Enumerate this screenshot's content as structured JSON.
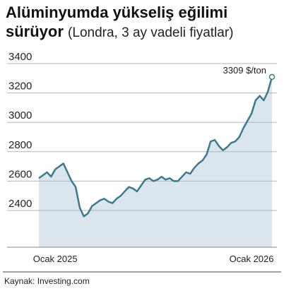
{
  "chart_data": {
    "type": "area",
    "title": "Alüminyumda yükseliş eğilimi sürüyor",
    "subtitle": "(Londra, 3 ay vadeli fiyatlar)",
    "categories": [
      null,
      null,
      null,
      null,
      "Ocak 2025",
      null,
      null,
      null,
      null,
      null,
      null,
      null,
      null,
      null,
      null,
      null,
      null,
      null,
      null,
      null,
      null,
      null,
      null,
      null,
      null,
      null,
      null,
      null,
      null,
      null,
      null,
      null,
      null,
      null,
      null,
      null,
      null,
      null,
      null,
      null,
      null,
      null,
      null,
      null,
      null,
      null,
      null,
      null,
      null,
      null,
      null,
      null,
      "Ocak 2026",
      null,
      null,
      null,
      null,
      null
    ],
    "values": [
      2620,
      2640,
      2660,
      2630,
      2680,
      2700,
      2720,
      2660,
      2600,
      2560,
      2420,
      2360,
      2380,
      2430,
      2450,
      2470,
      2480,
      2460,
      2450,
      2480,
      2500,
      2530,
      2560,
      2550,
      2530,
      2570,
      2610,
      2620,
      2600,
      2610,
      2630,
      2610,
      2620,
      2600,
      2600,
      2630,
      2660,
      2650,
      2690,
      2720,
      2740,
      2780,
      2870,
      2880,
      2840,
      2810,
      2830,
      2860,
      2870,
      2900,
      2960,
      3010,
      3060,
      3150,
      3180,
      3150,
      3210,
      3309
    ],
    "annotation": "3309 $/ton",
    "color": "#3e7a8c",
    "fill": "#dbe5ee",
    "ylim": [
      2150,
      3400
    ],
    "yticks": [
      2400,
      2600,
      2800,
      3000,
      3200,
      3400
    ],
    "grid": true,
    "source": "Kaynak: Investing.com"
  }
}
